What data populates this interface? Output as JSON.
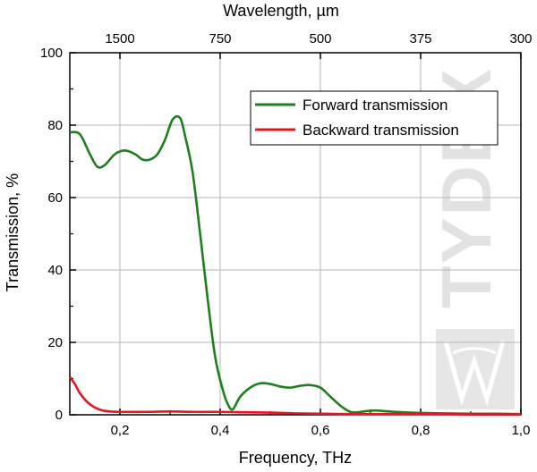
{
  "chart_data": {
    "type": "line",
    "xlabel": "Frequency, THz",
    "ylabel": "Transmission, %",
    "top_axis_label": "Wavelength, µm",
    "xlim": [
      0.1,
      1.0
    ],
    "ylim": [
      0,
      100
    ],
    "x_ticks": [
      0.2,
      0.4,
      0.6,
      0.8,
      1.0
    ],
    "x_tick_labels": [
      "0,2",
      "0,4",
      "0,6",
      "0,8",
      "1,0"
    ],
    "y_ticks": [
      0,
      20,
      40,
      60,
      80,
      100
    ],
    "y_tick_labels": [
      "0",
      "20",
      "40",
      "60",
      "80",
      "100"
    ],
    "top_ticks": [
      {
        "label": "1500",
        "frequency": 0.2
      },
      {
        "label": "750",
        "frequency": 0.4
      },
      {
        "label": "500",
        "frequency": 0.6
      },
      {
        "label": "375",
        "frequency": 0.8
      },
      {
        "label": "300",
        "frequency": 1.0
      }
    ],
    "grid": true,
    "legend_position": "top-right",
    "series": [
      {
        "name": "Forward transmission",
        "color": "#1e7f1e",
        "x": [
          0.1,
          0.12,
          0.14,
          0.155,
          0.17,
          0.19,
          0.21,
          0.23,
          0.245,
          0.26,
          0.275,
          0.29,
          0.305,
          0.32,
          0.33,
          0.345,
          0.36,
          0.375,
          0.39,
          0.405,
          0.415,
          0.425,
          0.44,
          0.46,
          0.48,
          0.5,
          0.52,
          0.54,
          0.56,
          0.58,
          0.6,
          0.62,
          0.64,
          0.66,
          0.675,
          0.69,
          0.71,
          0.73,
          0.75,
          0.78,
          0.8,
          0.85,
          0.9,
          0.95,
          1.0
        ],
        "y": [
          78,
          77.5,
          72,
          68.5,
          69,
          72,
          73,
          72,
          70.5,
          70.5,
          72,
          76,
          81.5,
          82,
          77,
          67,
          50,
          32,
          16,
          7,
          3,
          1.5,
          5,
          7.5,
          8.7,
          8.5,
          7.8,
          7.5,
          8,
          8.2,
          7.5,
          5,
          2.5,
          0.8,
          0.7,
          1,
          1.2,
          1,
          0.8,
          0.6,
          0.5,
          0.4,
          0.3,
          0.3,
          0.2
        ]
      },
      {
        "name": "Backward transmission",
        "color": "#e8141e",
        "x": [
          0.1,
          0.11,
          0.12,
          0.135,
          0.15,
          0.165,
          0.18,
          0.2,
          0.25,
          0.3,
          0.35,
          0.4,
          0.45,
          0.5,
          0.55,
          0.6,
          0.65,
          0.7,
          0.75,
          0.8,
          0.85,
          0.9,
          0.95,
          1.0
        ],
        "y": [
          10.5,
          8.5,
          6,
          3.5,
          2,
          1.2,
          0.9,
          0.8,
          0.8,
          0.9,
          0.8,
          0.8,
          0.7,
          0.6,
          0.4,
          0.3,
          0.2,
          0.2,
          0.2,
          0.2,
          0.2,
          0.1,
          0.1,
          0.1
        ]
      }
    ]
  },
  "watermark": {
    "text": "TYDEX"
  }
}
